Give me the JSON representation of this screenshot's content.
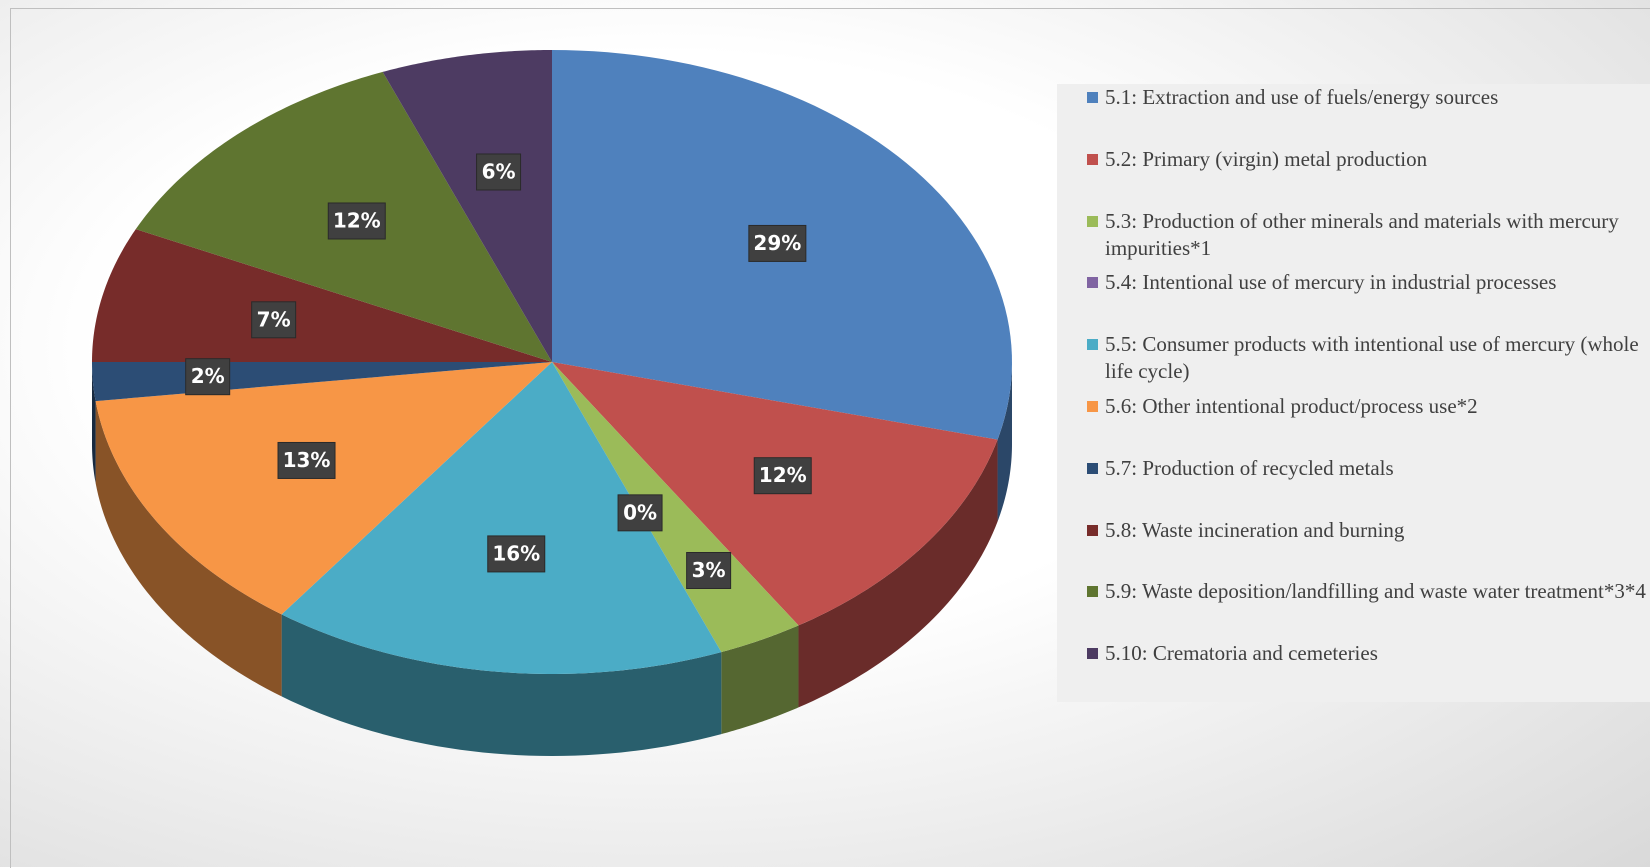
{
  "chart_data": {
    "type": "pie",
    "categories": [
      "5.1: Extraction and use of fuels/energy sources",
      "5.2: Primary (virgin) metal production",
      "5.3: Production of other minerals and materials with mercury impurities*1",
      "5.4: Intentional use of mercury in industrial processes",
      "5.5: Consumer products with intentional use of mercury (whole life cycle)",
      "5.6: Other intentional product/process use*2",
      "5.7: Production of recycled metals",
      "5.8: Waste incineration and burning",
      "5.9: Waste deposition/landfilling and waste water treatment*3*4",
      "5.10: Crematoria and cemeteries"
    ],
    "values": [
      29,
      12,
      3,
      0,
      16,
      13,
      2,
      7,
      12,
      6
    ],
    "value_labels": [
      "29%",
      "12%",
      "3%",
      "0%",
      "16%",
      "13%",
      "2%",
      "7%",
      "12%",
      "6%"
    ],
    "colors": [
      "#4f81bd",
      "#c0504d",
      "#9bbb59",
      "#8064a2",
      "#4bacc6",
      "#f79646",
      "#2c4d75",
      "#772c2a",
      "#5f7530",
      "#4d3b62"
    ]
  }
}
